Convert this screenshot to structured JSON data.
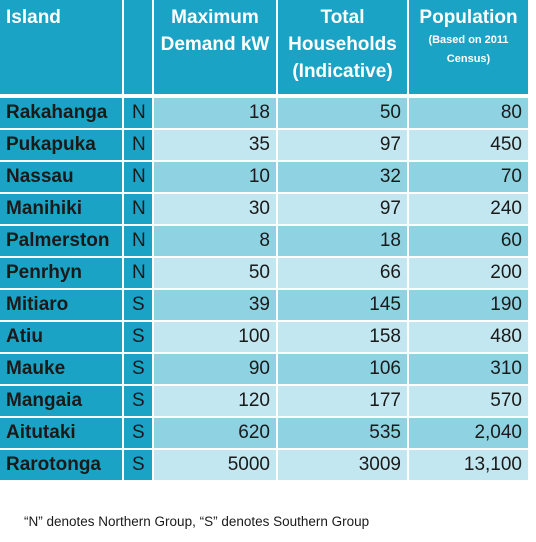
{
  "headers": {
    "island": "Island",
    "group": "",
    "demand": "Maximum Demand kW",
    "households": "Total Households (Indicative)",
    "population": "Population",
    "population_note": "(Based on 2011 Census)"
  },
  "rows": [
    {
      "island": "Rakahanga",
      "group": "N",
      "demand": "18",
      "households": "50",
      "population": "80"
    },
    {
      "island": "Pukapuka",
      "group": "N",
      "demand": "35",
      "households": "97",
      "population": "450"
    },
    {
      "island": "Nassau",
      "group": "N",
      "demand": "10",
      "households": "32",
      "population": "70"
    },
    {
      "island": "Manihiki",
      "group": "N",
      "demand": "30",
      "households": "97",
      "population": "240"
    },
    {
      "island": "Palmerston",
      "group": "N",
      "demand": "8",
      "households": "18",
      "population": "60"
    },
    {
      "island": "Penrhyn",
      "group": "N",
      "demand": "50",
      "households": "66",
      "population": "200"
    },
    {
      "island": "Mitiaro",
      "group": "S",
      "demand": "39",
      "households": "145",
      "population": "190"
    },
    {
      "island": "Atiu",
      "group": "S",
      "demand": "100",
      "households": "158",
      "population": "480"
    },
    {
      "island": "Mauke",
      "group": "S",
      "demand": "90",
      "households": "106",
      "population": "310"
    },
    {
      "island": "Mangaia",
      "group": "S",
      "demand": "120",
      "households": "177",
      "population": "570"
    },
    {
      "island": "Aitutaki",
      "group": "S",
      "demand": "620",
      "households": "535",
      "population": "2,040"
    },
    {
      "island": "Rarotonga",
      "group": "S",
      "demand": "5000",
      "households": "3009",
      "population": "13,100"
    }
  ],
  "footnote": "“N” denotes Northern Group, “S” denotes Southern Group",
  "colors": {
    "header": "#1ba3c6",
    "row_dark": "#8fd3e3",
    "row_light": "#c3e7f0"
  }
}
